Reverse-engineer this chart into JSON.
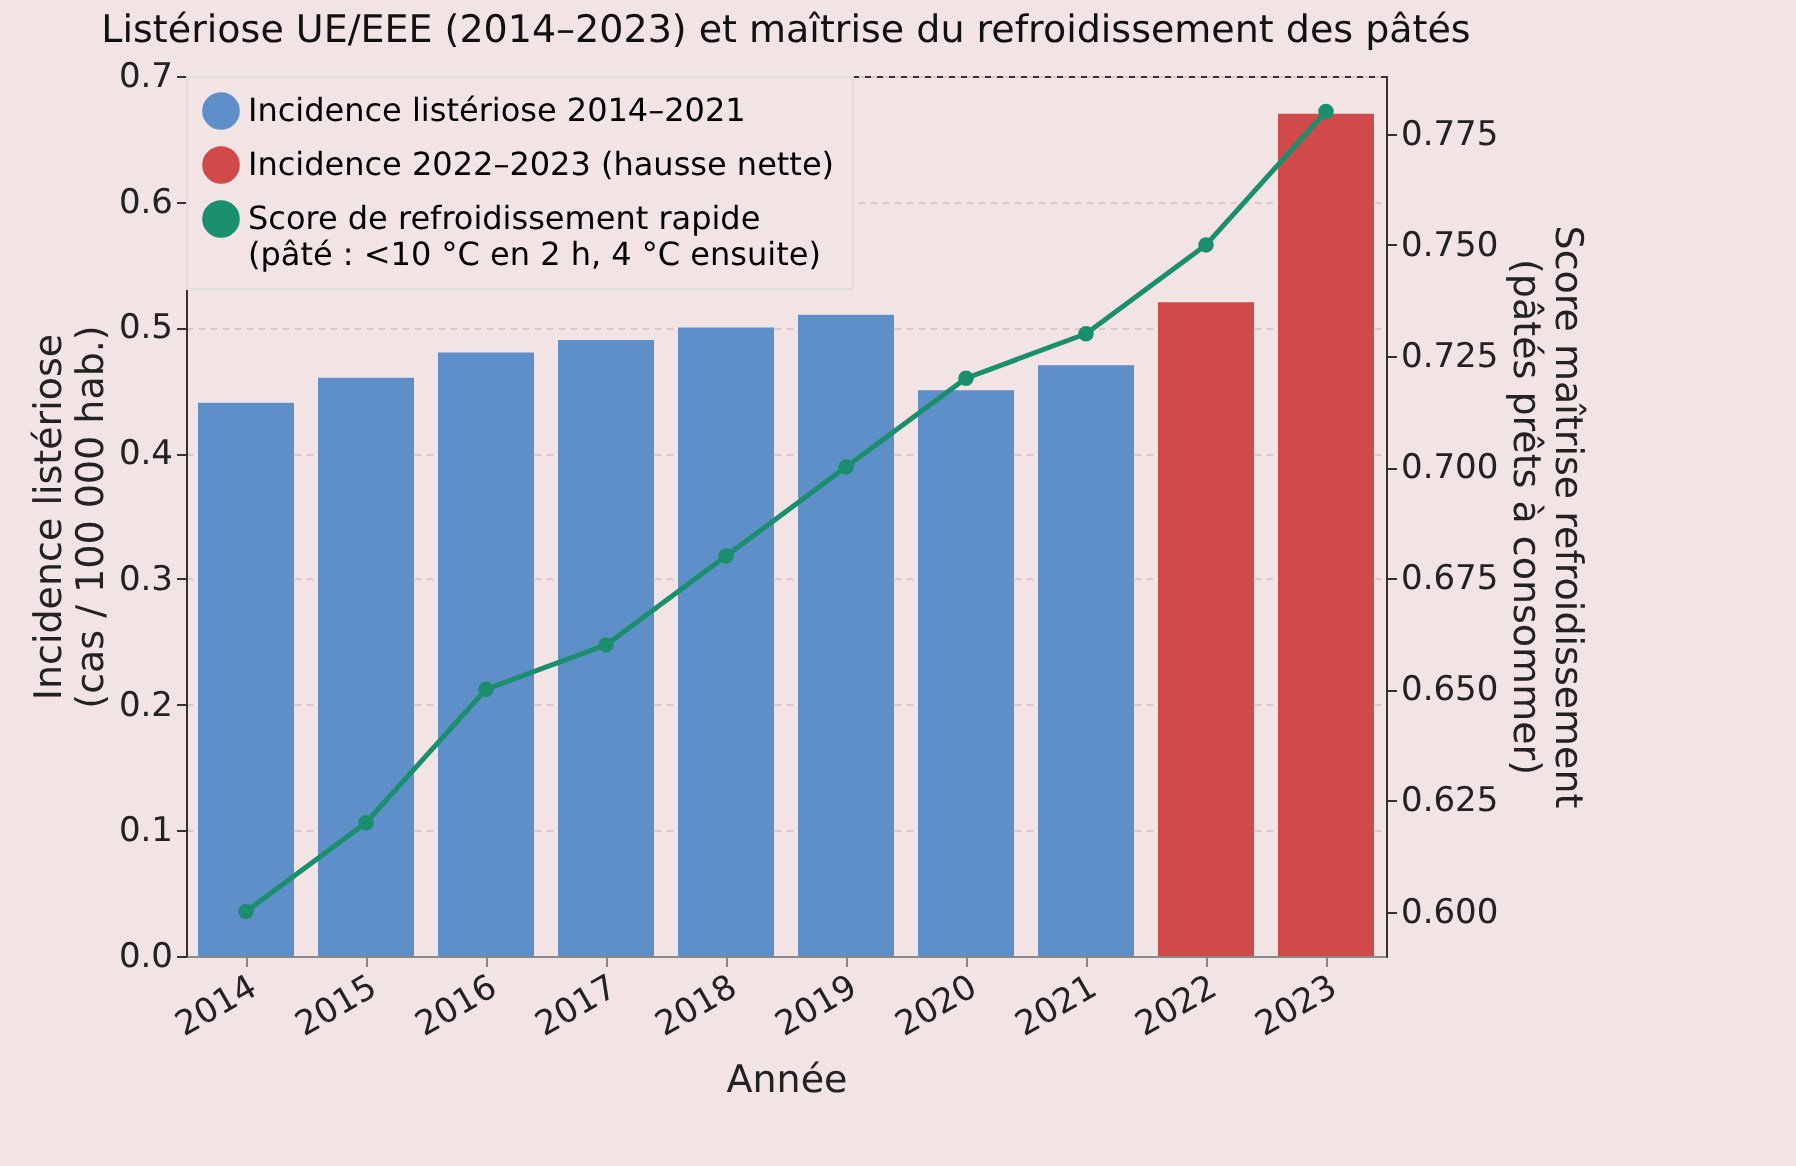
{
  "chart_data": {
    "type": "bar",
    "title": "Listériose UE/EEE (2014–2023) et maîtrise du refroidissement des pâtés",
    "xlabel": "Année",
    "ylabel": "Incidence listériose\n(cas / 100 000 hab.)",
    "y2label": "Score maîtrise refroidissement\n(pâtés prêts à consommer)",
    "categories": [
      "2014",
      "2015",
      "2016",
      "2017",
      "2018",
      "2019",
      "2020",
      "2021",
      "2022",
      "2023"
    ],
    "series": [
      {
        "name": "Incidence listériose 2014–2021",
        "color": "#5f8fc9",
        "values": [
          0.44,
          0.46,
          0.48,
          0.49,
          0.5,
          0.51,
          0.45,
          0.47,
          null,
          null
        ]
      },
      {
        "name": "Incidence 2022–2023 (hausse nette)",
        "color": "#d04a4a",
        "values": [
          null,
          null,
          null,
          null,
          null,
          null,
          null,
          null,
          0.52,
          0.67
        ]
      },
      {
        "name": "Score de refroidissement rapide\n(pâté : <10 °C en 2 h, 4 °C ensuite)",
        "type": "line",
        "axis": "y2",
        "color": "#1a8f6e",
        "values": [
          0.6,
          0.62,
          0.65,
          0.66,
          0.68,
          0.7,
          0.72,
          0.73,
          0.75,
          0.78
        ]
      }
    ],
    "ylim": [
      0,
      0.7
    ],
    "yticks": [
      {
        "value": 0,
        "label": "0.0"
      },
      0.1,
      0.2,
      0.3,
      0.4,
      0.5,
      0.6,
      0.7
    ],
    "y2lim": [
      0.59,
      0.788
    ],
    "y2ticks": [
      {
        "value": 0.6,
        "label": "0.600"
      },
      0.625,
      {
        "value": 0.65,
        "label": "0.650"
      },
      0.675,
      {
        "value": 0.7,
        "label": "0.700"
      },
      0.725,
      {
        "value": 0.75,
        "label": "0.750"
      },
      0.775
    ],
    "grid": "y",
    "legend": "top left",
    "marker": "circle",
    "line_style": "solid"
  }
}
